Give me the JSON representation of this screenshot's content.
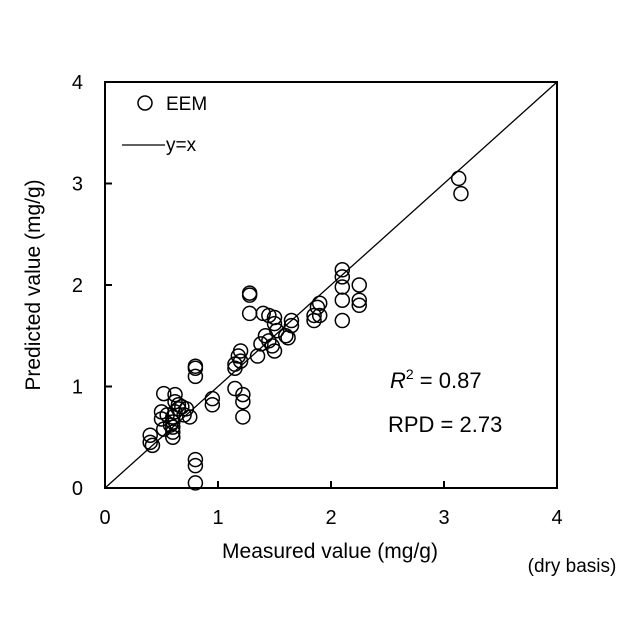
{
  "chart_data": {
    "type": "scatter",
    "title": "",
    "xlabel": "Measured value (mg/g)",
    "ylabel": "Predicted value (mg/g)",
    "note": "(dry basis)",
    "xlim": [
      0,
      4
    ],
    "ylim": [
      0,
      4
    ],
    "xticks": [
      "0",
      "1",
      "2",
      "3",
      "4"
    ],
    "yticks": [
      "0",
      "1",
      "2",
      "3",
      "4"
    ],
    "grid": false,
    "legend": {
      "placement": "top-left",
      "entries": [
        "EEM",
        "y=x"
      ]
    },
    "annotations": {
      "r2_label": "R",
      "r2_sup": "2",
      "r2_value": " = 0.87",
      "rpd": "RPD = 2.73"
    },
    "series": [
      {
        "name": "EEM",
        "marker": "open-circle",
        "points": [
          [
            3.13,
            3.05
          ],
          [
            3.15,
            2.9
          ],
          [
            2.1,
            2.15
          ],
          [
            2.1,
            2.08
          ],
          [
            2.1,
            1.98
          ],
          [
            2.1,
            1.85
          ],
          [
            2.1,
            1.65
          ],
          [
            2.25,
            2.0
          ],
          [
            2.25,
            1.85
          ],
          [
            2.25,
            1.8
          ],
          [
            1.85,
            1.7
          ],
          [
            1.88,
            1.78
          ],
          [
            1.9,
            1.82
          ],
          [
            1.85,
            1.65
          ],
          [
            1.9,
            1.7
          ],
          [
            1.65,
            1.65
          ],
          [
            1.65,
            1.6
          ],
          [
            1.6,
            1.5
          ],
          [
            1.62,
            1.48
          ],
          [
            1.5,
            1.68
          ],
          [
            1.5,
            1.62
          ],
          [
            1.45,
            1.7
          ],
          [
            1.4,
            1.72
          ],
          [
            1.52,
            1.55
          ],
          [
            1.5,
            1.35
          ],
          [
            1.48,
            1.4
          ],
          [
            1.28,
            1.92
          ],
          [
            1.28,
            1.9
          ],
          [
            1.28,
            1.72
          ],
          [
            1.35,
            1.3
          ],
          [
            1.38,
            1.42
          ],
          [
            1.42,
            1.5
          ],
          [
            1.45,
            1.45
          ],
          [
            1.2,
            1.35
          ],
          [
            1.18,
            1.3
          ],
          [
            1.15,
            1.22
          ],
          [
            1.15,
            1.18
          ],
          [
            1.2,
            1.25
          ],
          [
            1.15,
            0.98
          ],
          [
            1.22,
            0.92
          ],
          [
            1.22,
            0.85
          ],
          [
            1.22,
            0.7
          ],
          [
            0.95,
            0.88
          ],
          [
            0.95,
            0.82
          ],
          [
            0.8,
            1.2
          ],
          [
            0.8,
            1.18
          ],
          [
            0.8,
            1.1
          ],
          [
            0.8,
            0.28
          ],
          [
            0.8,
            0.22
          ],
          [
            0.8,
            0.05
          ],
          [
            0.68,
            0.8
          ],
          [
            0.72,
            0.78
          ],
          [
            0.75,
            0.7
          ],
          [
            0.7,
            0.72
          ],
          [
            0.62,
            0.92
          ],
          [
            0.65,
            0.82
          ],
          [
            0.62,
            0.75
          ],
          [
            0.6,
            0.7
          ],
          [
            0.6,
            0.65
          ],
          [
            0.6,
            0.6
          ],
          [
            0.6,
            0.55
          ],
          [
            0.6,
            0.5
          ],
          [
            0.58,
            0.62
          ],
          [
            0.55,
            0.72
          ],
          [
            0.52,
            0.93
          ],
          [
            0.5,
            0.75
          ],
          [
            0.5,
            0.68
          ],
          [
            0.52,
            0.58
          ],
          [
            0.4,
            0.52
          ],
          [
            0.4,
            0.45
          ],
          [
            0.42,
            0.42
          ],
          [
            0.62,
            0.85
          ],
          [
            0.65,
            0.78
          ]
        ]
      },
      {
        "name": "y=x",
        "type": "line",
        "points": [
          [
            0,
            0
          ],
          [
            4,
            4
          ]
        ]
      }
    ]
  }
}
